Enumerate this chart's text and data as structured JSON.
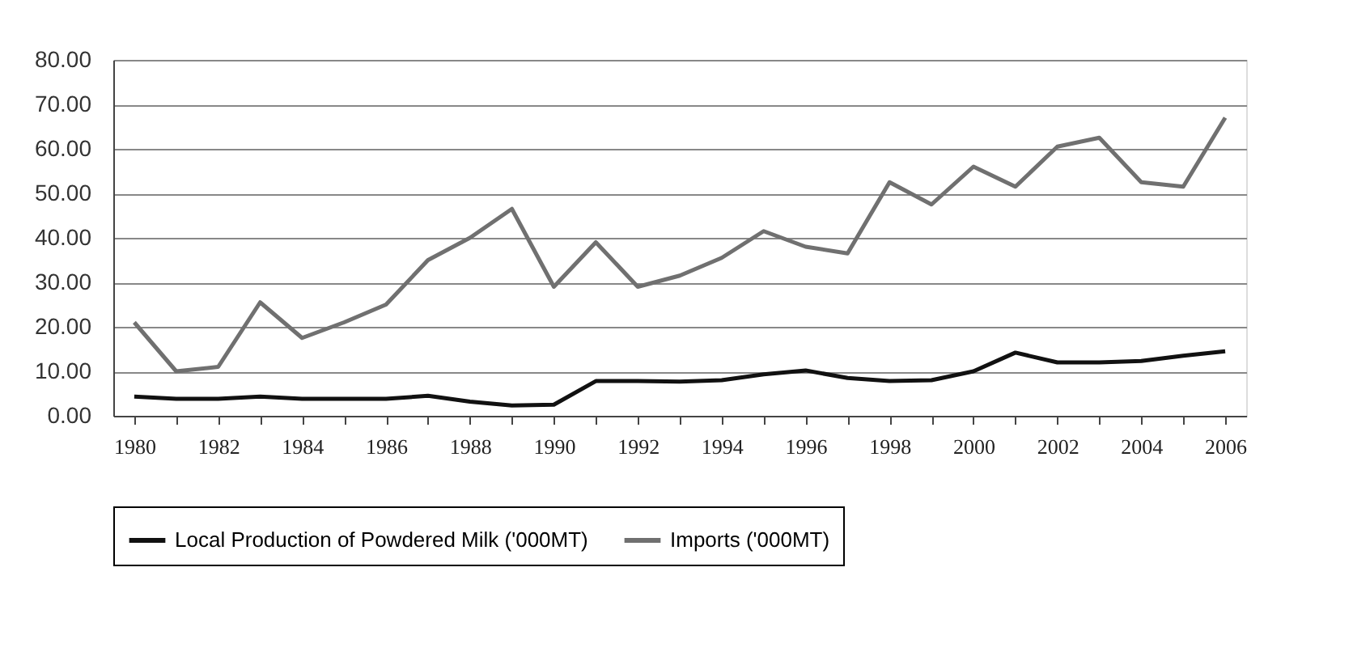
{
  "chart_data": {
    "type": "line",
    "categories": [
      "1980",
      null,
      "1982",
      null,
      "1984",
      null,
      "1986",
      null,
      "1988",
      null,
      "1990",
      null,
      "1992",
      null,
      "1994",
      null,
      "1996",
      null,
      "1998",
      null,
      "2000",
      null,
      "2002",
      null,
      "2004",
      null,
      "2006"
    ],
    "series": [
      {
        "name": "Local  Production of Powdered Milk ('000MT)",
        "color": "#111111",
        "values": [
          4.3,
          3.8,
          3.8,
          4.3,
          3.8,
          3.8,
          3.8,
          4.5,
          3.2,
          2.3,
          2.5,
          7.8,
          7.8,
          7.7,
          8,
          9.3,
          10.2,
          8.5,
          7.8,
          8,
          10,
          14.2,
          12,
          12,
          12.3,
          13.5,
          14.5
        ]
      },
      {
        "name": "Imports ('000MT)",
        "color": "#707070",
        "values": [
          21,
          10,
          11,
          25.5,
          17.5,
          21,
          25,
          35,
          40,
          46.5,
          29,
          39,
          29,
          31.5,
          35.5,
          41.5,
          38,
          36.5,
          52.5,
          47.5,
          56,
          51.5,
          60.5,
          62.5,
          52.5,
          51.5,
          67
        ]
      }
    ],
    "ylim": [
      0,
      80
    ],
    "yticks": [
      {
        "value": 0,
        "label": "0.00"
      },
      {
        "value": 10,
        "label": "10.00"
      },
      {
        "value": 20,
        "label": "20.00"
      },
      {
        "value": 30,
        "label": "30.00"
      },
      {
        "value": 40,
        "label": "40.00"
      },
      {
        "value": 50,
        "label": "50.00"
      },
      {
        "value": 60,
        "label": "60.00"
      },
      {
        "value": 70,
        "label": "70.00"
      },
      {
        "value": 80,
        "label": "80.00"
      }
    ],
    "grid": "y",
    "legend": "bottom",
    "marker": "none",
    "line_style": "solid"
  }
}
